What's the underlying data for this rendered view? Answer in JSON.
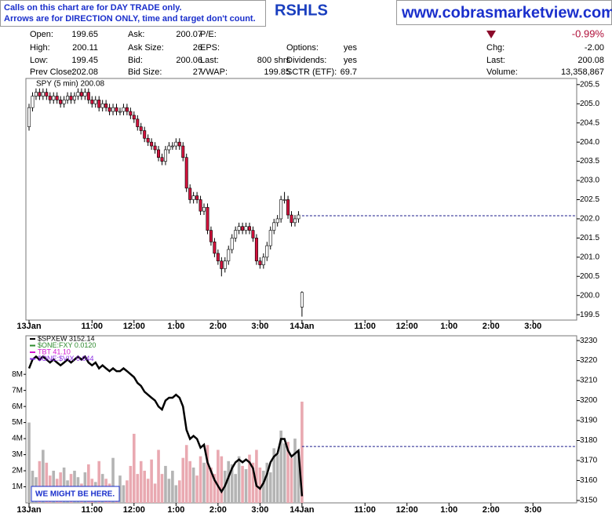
{
  "header": {
    "notice": [
      "Calls on this chart are for DAY TRADE only.",
      "Arrows are for DIRECTION ONLY, time and target don't count."
    ],
    "symbol": "RSHLS",
    "site": "www.cobrasmarketview.com",
    "quote": {
      "rows": [
        [
          {
            "label": "Open:",
            "value": "199.65"
          },
          {
            "label": "Ask:",
            "value": "200.07"
          },
          {
            "label": "P/E:"
          }
        ],
        [
          {
            "label": "High:",
            "value": "200.11"
          },
          {
            "label": "Ask Size:",
            "value": "26"
          },
          {
            "label": "EPS:"
          },
          {
            "label": "Options:",
            "value": "yes"
          }
        ],
        [
          {
            "label": "Low:",
            "value": "199.45"
          },
          {
            "label": "Bid:",
            "value": "200.06"
          },
          {
            "label": "Last:",
            "value": "800 shrs"
          },
          {
            "label": "Dividends:",
            "value": "yes"
          }
        ],
        [
          {
            "label": "Prev Close:",
            "value": "202.08"
          },
          {
            "label": "Bid Size:",
            "value": "27"
          },
          {
            "label": "VWAP:",
            "value": "199.85"
          },
          {
            "label": "SCTR (ETF):",
            "value": "69.7"
          }
        ]
      ],
      "change": "-0.99%",
      "right": [
        {
          "label": "Chg:",
          "value": "-2.00"
        },
        {
          "label": "Last:",
          "value": "200.08"
        },
        {
          "label": "Volume:",
          "value": "13,358,867"
        }
      ]
    }
  },
  "chart_data": [
    {
      "type": "candlestick",
      "title": "SPY (5 min) 200.08",
      "open": [
        204.4,
        204.9,
        205.2,
        205.3,
        205.2,
        205.3,
        205.2,
        205.1,
        205.2,
        205.1,
        205.0,
        205.1,
        205.2,
        205.1,
        205.2,
        205.3,
        205.2,
        205.3,
        205.1,
        205.0,
        205.1,
        204.9,
        205.0,
        204.9,
        204.8,
        204.9,
        204.8,
        204.8,
        204.9,
        204.8,
        204.7,
        204.6,
        204.4,
        204.3,
        204.1,
        204.0,
        203.9,
        203.8,
        203.6,
        203.5,
        203.8,
        203.9,
        203.9,
        204.0,
        203.9,
        203.6,
        202.8,
        202.5,
        202.6,
        202.5,
        202.2,
        202.3,
        201.7,
        201.4,
        201.1,
        200.9,
        200.7,
        200.9,
        201.2,
        201.5,
        201.7,
        201.8,
        201.7,
        201.8,
        201.7,
        201.5,
        200.9,
        200.8,
        201.0,
        201.3,
        201.7,
        201.9,
        202.0,
        202.5,
        202.5,
        202.1,
        201.9,
        202.0,
        199.7
      ],
      "high": [
        205.0,
        205.3,
        205.4,
        205.4,
        205.4,
        205.4,
        205.3,
        205.3,
        205.3,
        205.2,
        205.2,
        205.3,
        205.3,
        205.3,
        205.4,
        205.4,
        205.4,
        205.4,
        205.2,
        205.2,
        205.2,
        205.1,
        205.1,
        205.0,
        205.0,
        205.0,
        204.9,
        205.0,
        205.0,
        204.9,
        204.8,
        204.7,
        204.5,
        204.4,
        204.2,
        204.1,
        204.0,
        203.9,
        203.7,
        203.9,
        204.0,
        204.0,
        204.1,
        204.1,
        204.0,
        203.7,
        202.9,
        202.7,
        202.7,
        202.6,
        202.4,
        202.4,
        201.8,
        201.5,
        201.2,
        201.0,
        201.0,
        201.3,
        201.6,
        201.8,
        201.9,
        201.9,
        201.9,
        201.9,
        201.8,
        201.6,
        201.0,
        201.1,
        201.4,
        201.8,
        202.0,
        202.1,
        202.6,
        202.7,
        202.6,
        202.2,
        202.1,
        202.2,
        200.11
      ],
      "low": [
        204.3,
        204.8,
        205.1,
        205.1,
        205.1,
        205.1,
        205.0,
        205.0,
        205.0,
        204.9,
        204.9,
        205.0,
        205.0,
        205.0,
        205.1,
        205.1,
        205.1,
        205.0,
        204.9,
        204.9,
        204.8,
        204.8,
        204.8,
        204.7,
        204.7,
        204.7,
        204.7,
        204.7,
        204.7,
        204.6,
        204.5,
        204.3,
        204.2,
        204.0,
        203.9,
        203.8,
        203.7,
        203.5,
        203.4,
        203.4,
        203.7,
        203.8,
        203.8,
        203.8,
        203.5,
        202.7,
        202.4,
        202.4,
        202.4,
        202.1,
        202.1,
        201.6,
        201.3,
        201.0,
        200.8,
        200.5,
        200.6,
        200.8,
        201.1,
        201.4,
        201.6,
        201.6,
        201.6,
        201.6,
        201.4,
        200.8,
        200.7,
        200.7,
        200.9,
        201.2,
        201.6,
        201.8,
        201.9,
        202.4,
        202.0,
        201.8,
        201.8,
        201.9,
        199.45
      ],
      "close": [
        204.9,
        205.2,
        205.3,
        205.2,
        205.3,
        205.2,
        205.1,
        205.2,
        205.1,
        205.0,
        205.1,
        205.2,
        205.1,
        205.2,
        205.3,
        205.2,
        205.3,
        205.1,
        205.0,
        205.1,
        204.9,
        205.0,
        204.9,
        204.8,
        204.9,
        204.8,
        204.8,
        204.9,
        204.8,
        204.7,
        204.6,
        204.4,
        204.3,
        204.1,
        204.0,
        203.9,
        203.8,
        203.6,
        203.5,
        203.8,
        203.9,
        203.9,
        204.0,
        203.9,
        203.6,
        202.8,
        202.5,
        202.6,
        202.5,
        202.2,
        202.3,
        201.7,
        201.4,
        201.1,
        200.9,
        200.7,
        200.9,
        201.2,
        201.5,
        201.7,
        201.8,
        201.7,
        201.8,
        201.7,
        201.5,
        200.9,
        200.8,
        201.0,
        201.3,
        201.7,
        201.9,
        202.0,
        202.5,
        202.5,
        202.1,
        201.9,
        202.0,
        202.1,
        200.08
      ],
      "up_color": "#ffffff",
      "down_color": "#d2123c",
      "reference_line": 202.08,
      "xlim": [
        -0.9,
        156.5
      ],
      "xticks": [
        {
          "value": 0,
          "label": "13Jan"
        },
        {
          "value": 18,
          "label": "11:00"
        },
        {
          "value": 30,
          "label": "12:00"
        },
        {
          "value": 42,
          "label": "1:00"
        },
        {
          "value": 54,
          "label": "2:00"
        },
        {
          "value": 66,
          "label": "3:00"
        },
        {
          "value": 78,
          "label": "14Jan"
        },
        {
          "value": 96,
          "label": "11:00"
        },
        {
          "value": 108,
          "label": "12:00"
        },
        {
          "value": 120,
          "label": "1:00"
        },
        {
          "value": 132,
          "label": "2:00"
        },
        {
          "value": 144,
          "label": "3:00"
        }
      ],
      "ylim": [
        199.36,
        205.66
      ],
      "yticks": [
        {
          "value": 199.5,
          "label": "199.5"
        },
        {
          "value": 200,
          "label": "200.0"
        },
        {
          "value": 200.5,
          "label": "200.5"
        },
        {
          "value": 201,
          "label": "201.0"
        },
        {
          "value": 201.5,
          "label": "201.5"
        },
        {
          "value": 202,
          "label": "202.0"
        },
        {
          "value": 202.5,
          "label": "202.5"
        },
        {
          "value": 203,
          "label": "203.0"
        },
        {
          "value": 203.5,
          "label": "203.5"
        },
        {
          "value": 204,
          "label": "204.0"
        },
        {
          "value": 204.5,
          "label": "204.5"
        },
        {
          "value": 205,
          "label": "205.0"
        },
        {
          "value": 205.5,
          "label": "205.5"
        }
      ]
    },
    {
      "type": "line",
      "series": [
        {
          "name": "$SPXEW 3152.14",
          "color": "#000000",
          "axis": "y2",
          "values": [
            3216.1,
            3220.5,
            3222,
            3220.5,
            3222,
            3220.5,
            3219,
            3220.5,
            3219,
            3217.6,
            3219,
            3220.5,
            3219,
            3220.5,
            3222,
            3220.5,
            3222,
            3219,
            3217.6,
            3219,
            3216.1,
            3217.6,
            3216.1,
            3214.7,
            3216.1,
            3214.7,
            3214.7,
            3216.1,
            3214.7,
            3213.2,
            3211.7,
            3208.8,
            3207.3,
            3204.4,
            3202.9,
            3201.4,
            3200,
            3197,
            3195.5,
            3200,
            3201.4,
            3201.4,
            3202.9,
            3201.4,
            3197,
            3185.3,
            3180.8,
            3182.3,
            3180.8,
            3176.4,
            3177.9,
            3169.1,
            3164.7,
            3160.3,
            3157.3,
            3154.4,
            3157.3,
            3161.7,
            3166.1,
            3169.1,
            3170.5,
            3169.1,
            3170.5,
            3169.1,
            3166.1,
            3157.3,
            3155.9,
            3158.8,
            3163.2,
            3169.1,
            3172,
            3173.5,
            3180.8,
            3180.8,
            3175,
            3172,
            3173.5,
            3175,
            3152.14
          ]
        }
      ],
      "overlays": [
        {
          "name": "$ONE:FXY 0.0120",
          "color": "#2e8b2e"
        },
        {
          "name": "TBT 41.10",
          "color": "#d21ad2"
        },
        {
          "name": "$ONE:$VIX 0.044",
          "color": "#8a2be2"
        }
      ],
      "volume": {
        "values": [
          5000000,
          2000000,
          1600000,
          2600000,
          3300000,
          2500000,
          1700000,
          2000000,
          1500000,
          1900000,
          2200000,
          1400000,
          1800000,
          2000000,
          1600000,
          1200000,
          1900000,
          2400000,
          1500000,
          1300000,
          2600000,
          1800000,
          1500000,
          1200000,
          2800000,
          1000000,
          1700000,
          1100000,
          1400000,
          2300000,
          4300000,
          1800000,
          2600000,
          2000000,
          1500000,
          2700000,
          1200000,
          3300000,
          1800000,
          2300000,
          1500000,
          2000000,
          1100000,
          1400000,
          2800000,
          3600000,
          2600000,
          2200000,
          1700000,
          2900000,
          2500000,
          3600000,
          2200000,
          1800000,
          3300000,
          2900000,
          2000000,
          2600000,
          2400000,
          1800000,
          2900000,
          2300000,
          2100000,
          3000000,
          2500000,
          3300000,
          2200000,
          2000000,
          2500000,
          1900000,
          3400000,
          3000000,
          4500000,
          3700000,
          3800000,
          2800000,
          4000000,
          3200000,
          6300000
        ],
        "up_color": "#b4b4b4",
        "down_color": "#e9a9b1"
      },
      "reference_line": 3177,
      "annotation": "WE MIGHT BE HERE.",
      "xlim": [
        -0.9,
        156.5
      ],
      "xticks": [
        {
          "value": 0,
          "label": "13Jan"
        },
        {
          "value": 18,
          "label": "11:00"
        },
        {
          "value": 30,
          "label": "12:00"
        },
        {
          "value": 42,
          "label": "1:00"
        },
        {
          "value": 54,
          "label": "2:00"
        },
        {
          "value": 66,
          "label": "3:00"
        },
        {
          "value": 78,
          "label": "14Jan"
        },
        {
          "value": 96,
          "label": "11:00"
        },
        {
          "value": 108,
          "label": "12:00"
        },
        {
          "value": 120,
          "label": "1:00"
        },
        {
          "value": 132,
          "label": "2:00"
        },
        {
          "value": 144,
          "label": "3:00"
        }
      ],
      "ylim": [
        0,
        10400000
      ],
      "yticks": [
        {
          "value": 1000000,
          "label": "1M"
        },
        {
          "value": 2000000,
          "label": "2M"
        },
        {
          "value": 3000000,
          "label": "3M"
        },
        {
          "value": 4000000,
          "label": "4M"
        },
        {
          "value": 5000000,
          "label": "5M"
        },
        {
          "value": 6000000,
          "label": "6M"
        },
        {
          "value": 7000000,
          "label": "7M"
        },
        {
          "value": 8000000,
          "label": "8M"
        }
      ],
      "y2lim": [
        3148.8,
        3232.4
      ],
      "y2ticks": [
        3150,
        3160,
        3170,
        3180,
        3190,
        3200,
        3210,
        3220,
        3230
      ]
    }
  ]
}
